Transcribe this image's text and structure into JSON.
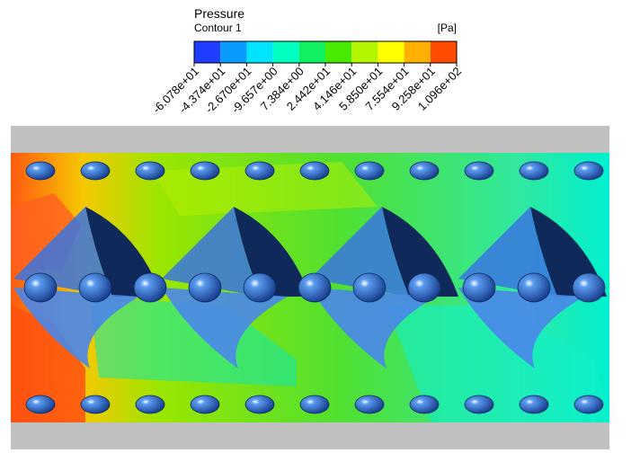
{
  "legend": {
    "title": "Pressure",
    "subtitle": "Contour 1",
    "unit": "[Pa]",
    "ticks": [
      "-6.078e+01",
      "-4.374e+01",
      "-2.670e+01",
      "-9.657e+00",
      "7.384e+00",
      "2.442e+01",
      "4.146e+01",
      "5.850e+01",
      "7.554e+01",
      "9.258e+01",
      "1.096e+02"
    ],
    "colors": [
      "#1f3cff",
      "#0a9bff",
      "#00e4ff",
      "#00ffbe",
      "#10f060",
      "#48ea00",
      "#b4f500",
      "#ffff00",
      "#ffb000",
      "#ff4c00"
    ]
  }
}
